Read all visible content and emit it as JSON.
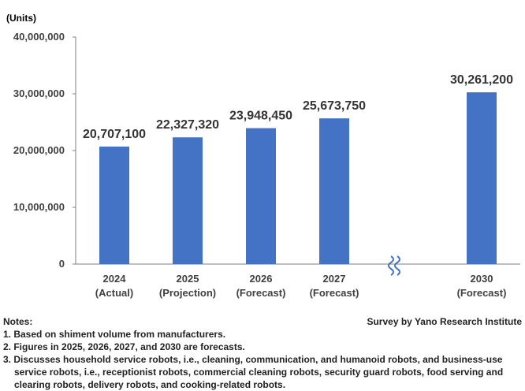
{
  "chart_data": {
    "type": "bar",
    "unit_label": "(Units)",
    "categories": [
      {
        "year": "2024",
        "note": "(Actual)"
      },
      {
        "year": "2025",
        "note": "(Projection)"
      },
      {
        "year": "2026",
        "note": "(Forecast)"
      },
      {
        "year": "2027",
        "note": "(Forecast)"
      },
      {
        "year": "2030",
        "note": "(Forecast)"
      }
    ],
    "values": [
      20707100,
      22327320,
      23948450,
      25673750,
      30261200
    ],
    "value_labels": [
      "20,707,100",
      "22,327,320",
      "23,948,450",
      "25,673,750",
      "30,261,200"
    ],
    "ylim": [
      0,
      40000000
    ],
    "yticks": [
      0,
      10000000,
      20000000,
      30000000,
      40000000
    ],
    "ytick_labels": [
      "0",
      "10,000,000",
      "20,000,000",
      "30,000,000",
      "40,000,000"
    ],
    "axis_break": "between 2027 and 2030",
    "bar_color": "#4472c4",
    "grid": false
  },
  "notes": {
    "heading": "Notes:",
    "source": "Survey by Yano Research Institute",
    "items": [
      "1. Based on shiment volume from manufacturers.",
      "2. Figures in 2025, 2026, 2027, and 2030 are forecasts.",
      "3. Discusses household service robots, i.e., cleaning, communication, and humanoid robots, and business-use service robots, i.e., receptionist robots, commercial cleaning robots, security guard robots, food serving and clearing robots, delivery robots, and cooking-related robots."
    ]
  }
}
